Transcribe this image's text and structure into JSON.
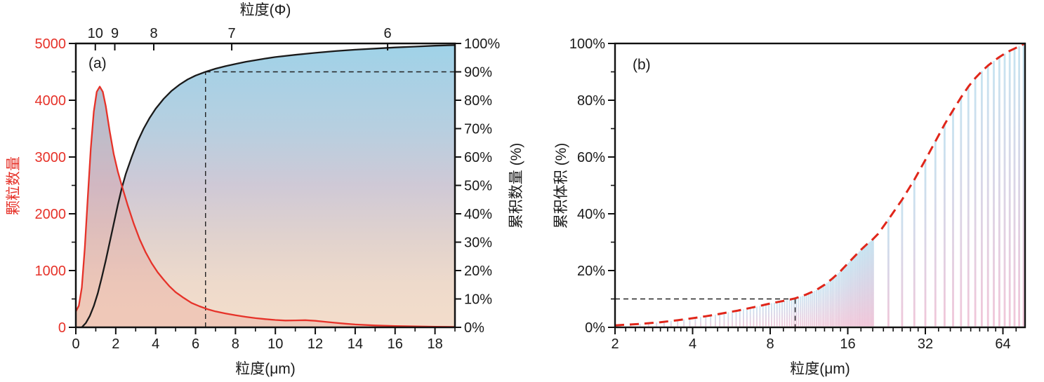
{
  "figure": {
    "background": "#ffffff",
    "panel_labels": [
      "(a)",
      "(b)"
    ]
  },
  "chart_data": {
    "a": {
      "type": "line",
      "panel_label": "(a)",
      "x_axis": {
        "title": "粒度(μm)",
        "min": 0,
        "max": 19,
        "major_ticks": [
          0,
          2,
          4,
          6,
          8,
          10,
          12,
          14,
          16,
          18
        ],
        "minor_ticks": [
          1,
          3,
          5,
          7,
          9,
          11,
          13,
          15,
          17,
          19
        ]
      },
      "top_axis": {
        "title": "粒度(Φ)",
        "ticks": [
          {
            "label": "10",
            "um": 0.977
          },
          {
            "label": "9",
            "um": 1.953
          },
          {
            "label": "8",
            "um": 3.906
          },
          {
            "label": "7",
            "um": 7.813
          },
          {
            "label": "6",
            "um": 15.625
          }
        ]
      },
      "y_left": {
        "title": "颗粒数量",
        "min": 0,
        "max": 5000,
        "color": "#e63229",
        "major_ticks": [
          0,
          1000,
          2000,
          3000,
          4000,
          5000
        ],
        "minor_ticks": [
          500,
          1500,
          2500,
          3500,
          4500
        ]
      },
      "y_right": {
        "title": "累积数量 (%)",
        "suffix": "%",
        "major_ticks": [
          0,
          10,
          20,
          30,
          40,
          50,
          60,
          70,
          80,
          90,
          100
        ]
      },
      "series": [
        {
          "name": "颗粒数量",
          "style": "solid",
          "color": "#e63229",
          "x": [
            0,
            0.15,
            0.3,
            0.45,
            0.6,
            0.75,
            0.9,
            1.05,
            1.2,
            1.35,
            1.5,
            1.7,
            1.9,
            2.1,
            2.3,
            2.6,
            2.9,
            3.2,
            3.5,
            3.8,
            4.1,
            4.4,
            4.7,
            5.0,
            5.4,
            5.8,
            6.2,
            6.6,
            7.0,
            7.5,
            8.0,
            8.5,
            9.0,
            9.5,
            10.0,
            10.5,
            11.0,
            11.5,
            12.0,
            12.5,
            13.0,
            13.5,
            14.0,
            15.0,
            16.0,
            17.0,
            18.0,
            19.0
          ],
          "y": [
            280,
            380,
            700,
            1400,
            2300,
            3150,
            3800,
            4150,
            4240,
            4150,
            3900,
            3450,
            3050,
            2750,
            2500,
            2150,
            1830,
            1550,
            1320,
            1130,
            970,
            840,
            720,
            620,
            520,
            430,
            370,
            320,
            280,
            245,
            212,
            185,
            162,
            145,
            130,
            120,
            122,
            126,
            115,
            98,
            80,
            64,
            50,
            33,
            24,
            17,
            11,
            8
          ]
        },
        {
          "name": "累积数量",
          "style": "solid",
          "color": "#1a1a1a",
          "x": [
            0.3,
            0.5,
            0.7,
            0.9,
            1.1,
            1.3,
            1.5,
            1.7,
            1.9,
            2.1,
            2.3,
            2.5,
            2.8,
            3.1,
            3.4,
            3.7,
            4.0,
            4.4,
            4.8,
            5.2,
            5.6,
            6.0,
            6.5,
            7.0,
            7.5,
            8.0,
            8.5,
            9.0,
            9.5,
            10.0,
            11.0,
            12.0,
            13.0,
            14.0,
            15.0,
            16.0,
            17.0,
            18.0,
            19.0
          ],
          "y_pct": [
            0,
            1.5,
            4,
            7.5,
            12,
            17.5,
            23.5,
            30,
            36.5,
            43,
            49,
            54,
            60,
            65.5,
            70,
            73.8,
            77,
            80.5,
            83.3,
            85.5,
            87.3,
            88.7,
            90,
            91.1,
            92,
            92.8,
            93.5,
            94.1,
            94.7,
            95.2,
            96,
            96.7,
            97.3,
            97.8,
            98.2,
            98.6,
            98.9,
            99.2,
            99.4
          ]
        }
      ],
      "marker": {
        "x_um": 6.5,
        "pct": 90
      },
      "fill_gradient": [
        "#9fd2e8",
        "#b7cfe0",
        "#cfc9d6",
        "#e2d3cd",
        "#eedacb",
        "#f3ddcb"
      ],
      "red_area_tint": "rgba(225,75,70,0.14)"
    },
    "b": {
      "type": "bar",
      "panel_label": "(b)",
      "x_axis": {
        "title": "粒度(μm)",
        "scale": "log2",
        "min": 2,
        "max": 78,
        "major_ticks": [
          2,
          4,
          8,
          16,
          32,
          64
        ],
        "minor_ticks": [
          2.2,
          2.4,
          2.6,
          2.8,
          3,
          3.2,
          3.4,
          3.6,
          3.8,
          4.5,
          5,
          5.5,
          6,
          6.5,
          7,
          7.5,
          9,
          10,
          11,
          12,
          13,
          14,
          15,
          18,
          20,
          22,
          24,
          26,
          28,
          30,
          36,
          40,
          44,
          48,
          52,
          56,
          60,
          72
        ]
      },
      "y_axis": {
        "title": "累积体积 (%)",
        "min": 0,
        "max": 100,
        "suffix": "%",
        "major_ticks": [
          0,
          20,
          40,
          60,
          80,
          100
        ],
        "minor_ticks": [
          10,
          30,
          50,
          70,
          90
        ]
      },
      "cumulative_curve": {
        "name": "累积体积",
        "style": "dashed",
        "color": "#e0261a",
        "x": [
          2,
          2.5,
          3,
          3.5,
          4,
          4.5,
          5,
          5.5,
          6,
          6.5,
          7,
          7.5,
          8,
          9,
          10,
          11,
          12,
          13,
          14,
          15,
          16,
          17,
          18,
          19,
          20,
          21,
          23,
          26,
          29,
          32,
          35,
          38,
          41,
          44,
          47,
          50,
          53,
          56,
          59,
          62,
          65,
          68,
          71,
          74,
          77,
          78
        ],
        "y_pct": [
          0.7,
          1.2,
          1.8,
          2.5,
          3.2,
          3.9,
          4.6,
          5.3,
          5.9,
          6.6,
          7.2,
          7.8,
          8.4,
          9.3,
          10.2,
          11.5,
          13,
          15,
          17.3,
          19.8,
          22.5,
          25,
          27.3,
          29.3,
          31,
          33,
          38,
          45,
          52,
          59,
          65.5,
          71.5,
          76.5,
          81,
          84.8,
          87.8,
          90.2,
          92.2,
          93.8,
          95.2,
          96.4,
          97.4,
          98.2,
          99,
          99.8,
          100
        ]
      },
      "bars": {
        "note": "heights follow cumulative curve",
        "dense": {
          "from": 2.1,
          "to": 20.1,
          "step": 0.2,
          "width": 1.8
        },
        "sparse": {
          "from": 23,
          "to": 77,
          "step": 3,
          "width": 2.8
        },
        "gradient": [
          "#c6e4f1",
          "#d8d6e7",
          "#f1c6d9"
        ]
      },
      "marker": {
        "x_um": 10,
        "pct": 10
      }
    }
  }
}
